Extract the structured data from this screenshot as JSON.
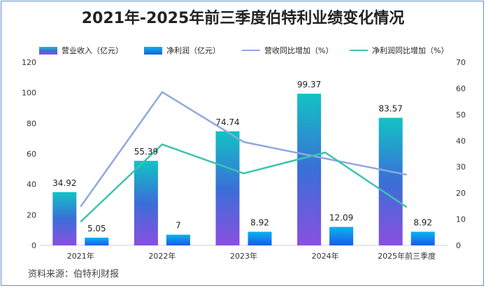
{
  "chart_data": {
    "type": "bar",
    "title": "2021年-2025年前三季度伯特利业绩变化情况",
    "categories": [
      "2021年",
      "2022年",
      "2023年",
      "2024年",
      "2025年前三季度"
    ],
    "series": [
      {
        "name": "营业收入（亿元）",
        "kind": "bar",
        "axis": "left",
        "values": [
          34.92,
          55.39,
          74.74,
          99.37,
          83.57
        ]
      },
      {
        "name": "净利润（亿元）",
        "kind": "bar",
        "axis": "left",
        "values": [
          5.05,
          7,
          8.92,
          12.09,
          8.92
        ]
      },
      {
        "name": "营收同比增加（%）",
        "kind": "line",
        "axis": "right",
        "values": [
          14.8,
          58.6,
          39.5,
          33.2,
          27
        ],
        "color": "#8fa8de"
      },
      {
        "name": "净利润同比增加（%）",
        "kind": "line",
        "axis": "right",
        "values": [
          9,
          38.6,
          27.5,
          35.5,
          14.6
        ],
        "color": "#3cc3b0"
      }
    ],
    "data_labels": {
      "revenue": [
        "34.92",
        "55.39",
        "74.74",
        "99.37",
        "83.57"
      ],
      "profit": [
        "5.05",
        "7",
        "8.92",
        "12.09",
        "8.92"
      ]
    },
    "y_left": {
      "range": [
        0,
        120
      ],
      "ticks": [
        "0",
        "20",
        "40",
        "60",
        "80",
        "100",
        "120"
      ]
    },
    "y_right": {
      "range": [
        0,
        70
      ],
      "ticks": [
        "0",
        "10",
        "20",
        "30",
        "40",
        "50",
        "60",
        "70"
      ]
    },
    "legend_position": "top",
    "grid": false
  },
  "source": "资料来源：伯特利财报",
  "colors": {
    "revenue_top": "#12c3c3",
    "revenue_mid": "#3a6fd8",
    "revenue_bottom": "#8a4fe0",
    "profit_top": "#08b3f0",
    "profit_bottom": "#1a5ce8",
    "revenue_growth": "#8fa8de",
    "profit_growth": "#3cc3b0"
  }
}
